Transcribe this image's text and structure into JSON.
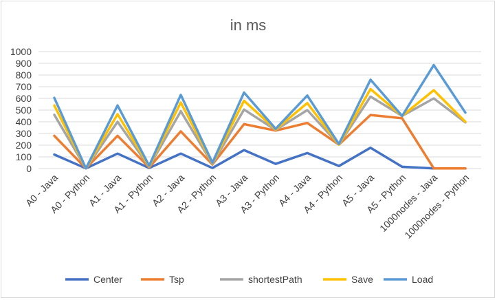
{
  "chart_data": {
    "type": "line",
    "title": "in ms",
    "xlabel": "",
    "ylabel": "",
    "ylim": [
      0,
      1000
    ],
    "yticks": [
      0,
      100,
      200,
      300,
      400,
      500,
      600,
      700,
      800,
      900,
      1000
    ],
    "grid": true,
    "legend_position": "bottom",
    "categories": [
      "A0 - Java",
      "A0 - Python",
      "A1 - Java",
      "A1 - Python",
      "A2 - Java",
      "A2 - Python",
      "A3 - Java",
      "A3 - Python",
      "A4 - Java",
      "A4 - Python",
      "A5 - Java",
      "A5 - Python",
      "1000nodes - Java",
      "1000nodes - Python"
    ],
    "series": [
      {
        "name": "Center",
        "color": "#4472c4",
        "values": [
          120,
          2,
          128,
          5,
          128,
          5,
          158,
          40,
          133,
          22,
          178,
          15,
          2,
          2
        ]
      },
      {
        "name": "Tsp",
        "color": "#ed7d31",
        "values": [
          280,
          2,
          280,
          10,
          318,
          35,
          380,
          325,
          390,
          205,
          458,
          430,
          2,
          2
        ]
      },
      {
        "name": "shortestPath",
        "color": "#a5a5a5",
        "values": [
          460,
          2,
          400,
          15,
          490,
          40,
          505,
          330,
          500,
          205,
          615,
          450,
          600,
          395
        ]
      },
      {
        "name": "Save",
        "color": "#ffc000",
        "values": [
          540,
          2,
          465,
          20,
          565,
          45,
          580,
          335,
          560,
          205,
          680,
          450,
          670,
          400
        ]
      },
      {
        "name": "Load",
        "color": "#5b9bd5",
        "values": [
          605,
          2,
          540,
          25,
          630,
          50,
          650,
          340,
          625,
          210,
          760,
          450,
          885,
          478
        ]
      }
    ]
  }
}
